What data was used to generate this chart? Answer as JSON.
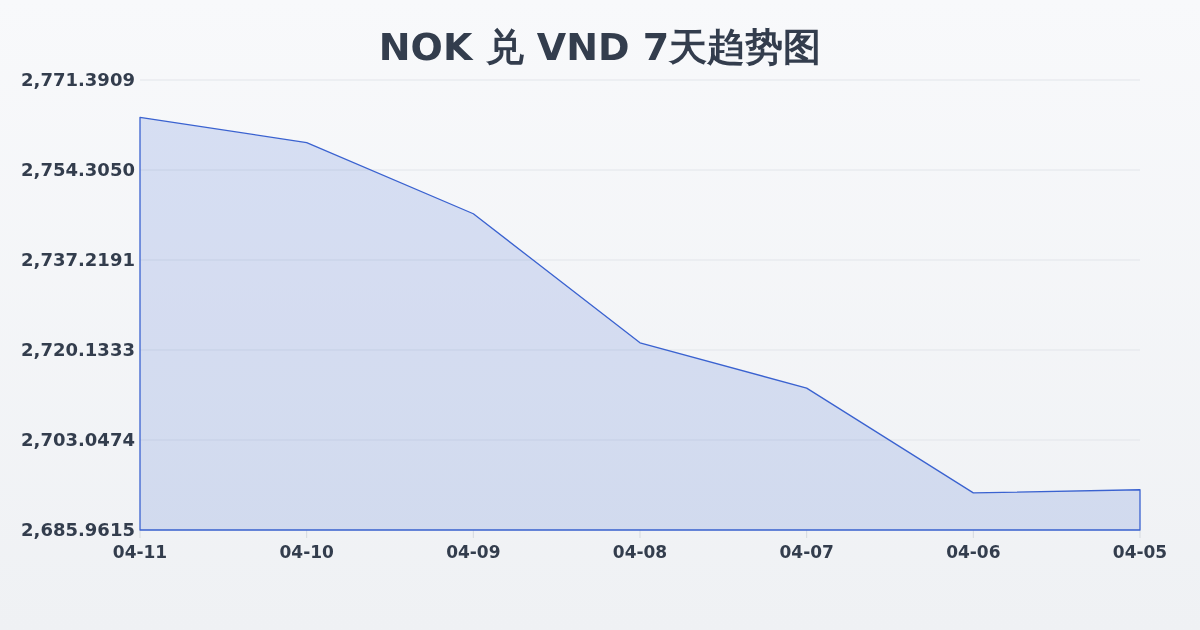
{
  "chart_data": {
    "type": "area",
    "title": "NOK 兑 VND 7天趋势图",
    "categories": [
      "04-11",
      "04-10",
      "04-09",
      "04-08",
      "04-07",
      "04-06",
      "04-05"
    ],
    "series": [
      {
        "color": "#3a62d0",
        "values": [
          2764.3,
          2759.5,
          2746.0,
          2721.5,
          2712.9,
          2693.0,
          2693.6
        ]
      }
    ],
    "ylim": [
      2685.9615,
      2771.3909
    ],
    "yticks": [
      {
        "value": 2685.9615,
        "label": "2,685.9615"
      },
      {
        "value": 2703.0474,
        "label": "2,703.0474"
      },
      {
        "value": 2720.1333,
        "label": "2,720.1333"
      },
      {
        "value": 2737.2191,
        "label": "2,737.2191"
      },
      {
        "value": 2754.305,
        "label": "2,754.3050"
      },
      {
        "value": 2771.3909,
        "label": "2,771.3909"
      }
    ],
    "grid": "y"
  }
}
